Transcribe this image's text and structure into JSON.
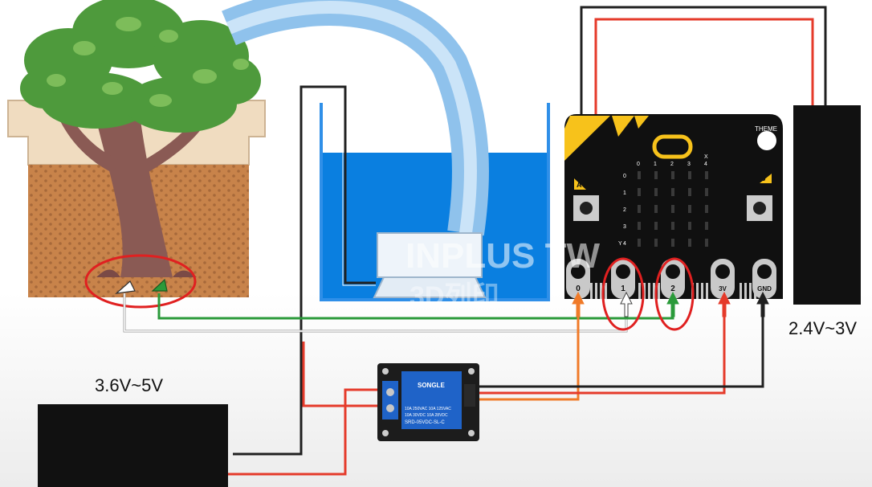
{
  "labels": {
    "battery_left_voltage": "3.6V~5V",
    "battery_right_voltage": "2.4V~3V",
    "watermark_line1": "INPLUS TW",
    "watermark_line2": "3D列印"
  },
  "microbit": {
    "theme_label": "THEME",
    "button_a_label": "A",
    "button_b_label": "B",
    "column_headers": [
      "0",
      "1",
      "2",
      "3",
      "4"
    ],
    "column_axis_label": "X",
    "row_headers": [
      "0",
      "1",
      "2",
      "3",
      "4"
    ],
    "row_axis_label": "Y",
    "pins": [
      "0",
      "1",
      "2",
      "3V",
      "GND"
    ]
  },
  "relay": {
    "brand": "SONGLE",
    "spec_lines": [
      "10A 250VAC  10A 125VAC",
      "10A  30VDC  10A  28VDC",
      "SRD-05VDC-SL-C"
    ]
  },
  "colors": {
    "water": "#0a7fe0",
    "soil": "#c8834a",
    "pot_rim": "#f0dcc0",
    "tree_leaf": "#4e9a3c",
    "tree_trunk": "#8a5a54",
    "board": "#101010",
    "board_accent": "#f7c21b",
    "wire_red": "#e53a2a",
    "wire_orange": "#f07a28",
    "wire_green": "#2a9a3a",
    "wire_black": "#202020",
    "highlight_circle": "#e02020",
    "relay_blue": "#1f63c8"
  }
}
